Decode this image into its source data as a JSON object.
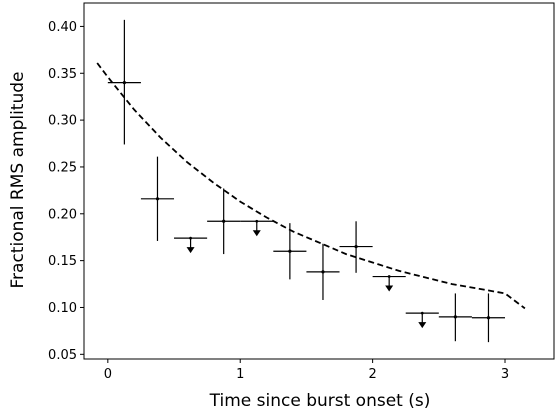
{
  "chart_data": {
    "type": "scatter",
    "title": "",
    "xlabel": "Time since burst onset (s)",
    "ylabel": "Fractional RMS amplitude",
    "xlim": [
      -0.18,
      3.37
    ],
    "ylim": [
      0.045,
      0.425
    ],
    "xticks": [
      0,
      1,
      2,
      3
    ],
    "xtick_labels": [
      "0",
      "1",
      "2",
      "3"
    ],
    "yticks": [
      0.05,
      0.1,
      0.15,
      0.2,
      0.25,
      0.3,
      0.35,
      0.4
    ],
    "ytick_labels": [
      "0.05",
      "0.10",
      "0.15",
      "0.20",
      "0.25",
      "0.30",
      "0.35",
      "0.40"
    ],
    "grid": false,
    "measurements": [
      {
        "x": 0.125,
        "xerr": 0.125,
        "y": 0.34,
        "ylo": 0.274,
        "yhi": 0.407
      },
      {
        "x": 0.375,
        "xerr": 0.125,
        "y": 0.216,
        "ylo": 0.171,
        "yhi": 0.261
      },
      {
        "x": 0.875,
        "xerr": 0.125,
        "y": 0.192,
        "ylo": 0.157,
        "yhi": 0.227
      },
      {
        "x": 1.375,
        "xerr": 0.125,
        "y": 0.16,
        "ylo": 0.13,
        "yhi": 0.19
      },
      {
        "x": 1.625,
        "xerr": 0.125,
        "y": 0.138,
        "ylo": 0.108,
        "yhi": 0.168
      },
      {
        "x": 1.875,
        "xerr": 0.125,
        "y": 0.165,
        "ylo": 0.137,
        "yhi": 0.192
      },
      {
        "x": 2.625,
        "xerr": 0.125,
        "y": 0.09,
        "ylo": 0.064,
        "yhi": 0.115
      },
      {
        "x": 2.875,
        "xerr": 0.125,
        "y": 0.089,
        "ylo": 0.063,
        "yhi": 0.115
      }
    ],
    "upper_limits": [
      {
        "x": 0.625,
        "xerr": 0.125,
        "y": 0.174
      },
      {
        "x": 1.125,
        "xerr": 0.125,
        "y": 0.192
      },
      {
        "x": 2.125,
        "xerr": 0.125,
        "y": 0.133
      },
      {
        "x": 2.375,
        "xerr": 0.125,
        "y": 0.094
      }
    ],
    "model_curve": {
      "style": "dashed",
      "x": [
        -0.08,
        0.0,
        0.2,
        0.4,
        0.6,
        0.8,
        1.0,
        1.2,
        1.4,
        1.6,
        1.8,
        2.0,
        2.2,
        2.4,
        2.6,
        2.8,
        3.0,
        3.15
      ],
      "y": [
        0.361,
        0.346,
        0.311,
        0.281,
        0.255,
        0.233,
        0.213,
        0.196,
        0.181,
        0.169,
        0.157,
        0.148,
        0.139,
        0.132,
        0.125,
        0.12,
        0.115,
        0.099
      ]
    }
  }
}
